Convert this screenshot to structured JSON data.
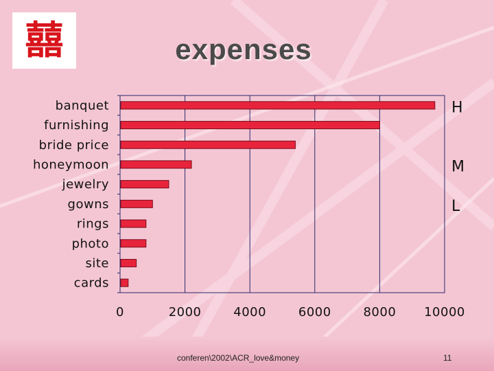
{
  "slide": {
    "title": "expenses",
    "logo_glyph": "囍",
    "footer_source": "conferen\\2002\\ACR_love&money",
    "page_number": "11"
  },
  "colors": {
    "background": "#f4c6d4",
    "bar_fill": "#e8243c",
    "bar_stroke": "#7a0c18",
    "gridline": "#2a2a6a",
    "logo_red": "#d8141c"
  },
  "chart_data": {
    "type": "bar",
    "orientation": "horizontal",
    "categories": [
      "banquet",
      "furnishing",
      "bride price",
      "honeymoon",
      "jewelry",
      "gowns",
      "rings",
      "photo",
      "site",
      "cards"
    ],
    "values": [
      9700,
      8000,
      5400,
      2200,
      1500,
      1000,
      800,
      800,
      500,
      250
    ],
    "xlim": [
      0,
      10000
    ],
    "xticks": [
      0,
      2000,
      4000,
      6000,
      8000,
      10000
    ],
    "grid": "vertical",
    "annotations": [
      {
        "text": "H",
        "near_category": "banquet"
      },
      {
        "text": "M",
        "near_category": "honeymoon"
      },
      {
        "text": "L",
        "near_category": "gowns"
      }
    ]
  }
}
